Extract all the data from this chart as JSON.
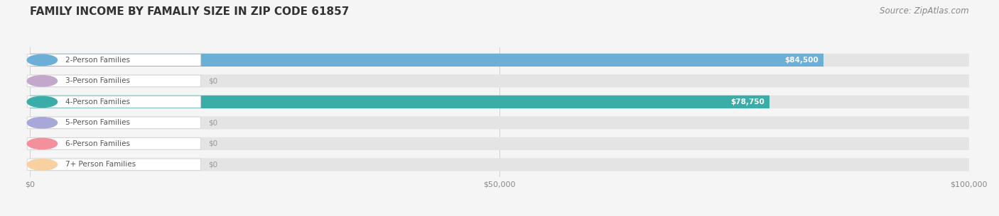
{
  "title": "FAMILY INCOME BY FAMALIY SIZE IN ZIP CODE 61857",
  "source": "Source: ZipAtlas.com",
  "categories": [
    "2-Person Families",
    "3-Person Families",
    "4-Person Families",
    "5-Person Families",
    "6-Person Families",
    "7+ Person Families"
  ],
  "values": [
    84500,
    0,
    78750,
    0,
    0,
    0
  ],
  "bar_colors": [
    "#6baed6",
    "#c3a8cc",
    "#3aada8",
    "#a8a8d8",
    "#f4909c",
    "#f9d0a0"
  ],
  "value_labels": [
    "$84,500",
    "$0",
    "$78,750",
    "$0",
    "$0",
    "$0"
  ],
  "xlim": [
    0,
    100000
  ],
  "xticks": [
    0,
    50000,
    100000
  ],
  "xticklabels": [
    "$0",
    "$50,000",
    "$100,000"
  ],
  "background_color": "#f5f5f5",
  "bar_background_color": "#e4e4e4",
  "title_fontsize": 11,
  "source_fontsize": 8.5,
  "label_fontsize": 7.5,
  "value_fontsize": 7.5
}
